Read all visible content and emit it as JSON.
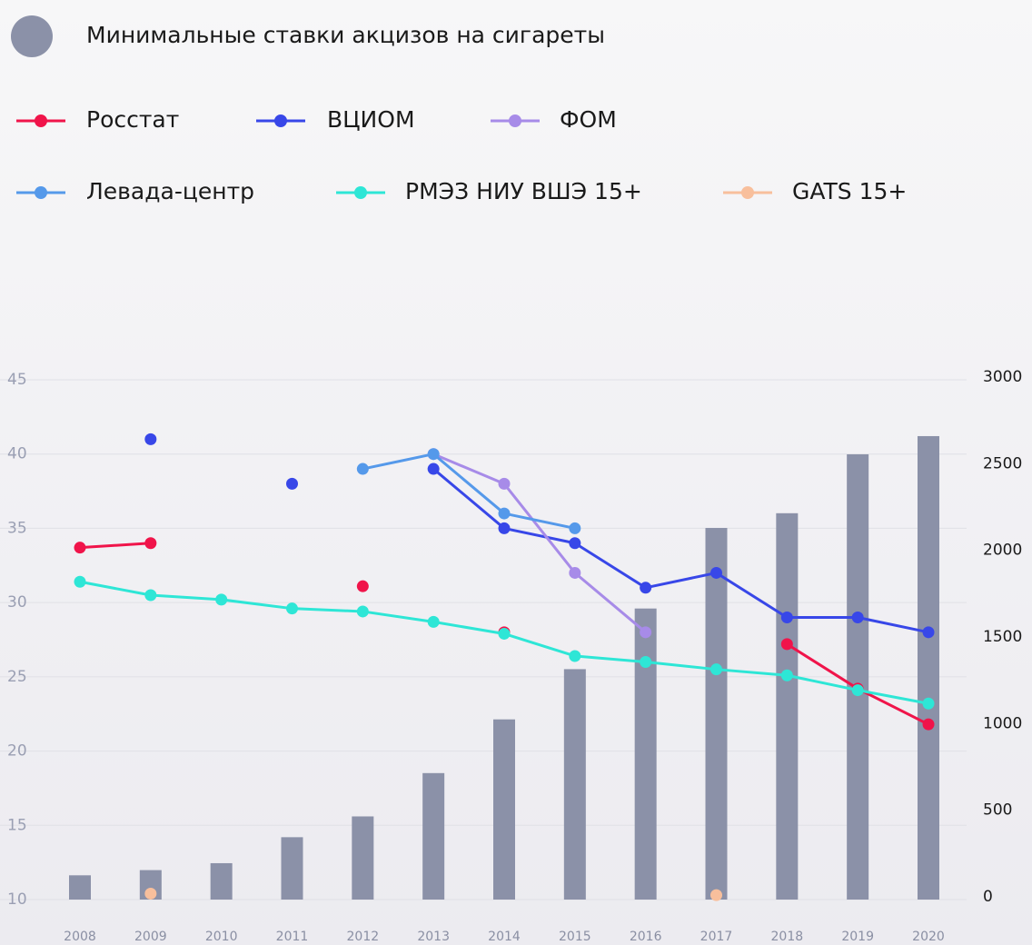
{
  "chart_data": {
    "type": "combo",
    "categories": [
      "2008",
      "2009",
      "2010",
      "2011",
      "2012",
      "2013",
      "2014",
      "2015",
      "2016",
      "2017",
      "2018",
      "2019",
      "2020"
    ],
    "ylim": [
      10,
      45
    ],
    "yticks": [
      10,
      15,
      20,
      25,
      30,
      35,
      40,
      45
    ],
    "y2lim": [
      0,
      3000
    ],
    "y2ticks": [
      0,
      500,
      1000,
      1500,
      2000,
      2500,
      3000
    ],
    "grid": true,
    "series": [
      {
        "name": "Минимальные ставки акцизов на сигареты",
        "type": "bar",
        "axis": "y2",
        "color": "#8b91a8",
        "values": [
          140,
          170,
          210,
          360,
          480,
          730,
          1040,
          1330,
          1680,
          2145,
          2230,
          2570,
          2675
        ]
      },
      {
        "name": "Росстат",
        "type": "line",
        "color": "#f0144a",
        "values": [
          33.7,
          34.0,
          null,
          null,
          31.1,
          null,
          28.0,
          null,
          null,
          null,
          27.2,
          24.2,
          21.8
        ]
      },
      {
        "name": "ВЦИОМ",
        "type": "line",
        "color": "#3847e8",
        "values": [
          null,
          41,
          null,
          38,
          null,
          39,
          35,
          34,
          31,
          32,
          29,
          29,
          28
        ]
      },
      {
        "name": "ФОМ",
        "type": "line",
        "color": "#a78be8",
        "values": [
          null,
          null,
          null,
          null,
          null,
          40,
          38,
          32,
          28,
          null,
          null,
          null,
          null
        ]
      },
      {
        "name": "Левада-центр",
        "type": "line",
        "color": "#5599ea",
        "values": [
          null,
          null,
          null,
          null,
          39,
          40,
          36,
          35,
          null,
          null,
          null,
          null,
          null
        ]
      },
      {
        "name": "РМЭЗ НИУ ВШЭ 15+",
        "type": "line",
        "color": "#2ee6d6",
        "values": [
          31.4,
          30.5,
          30.2,
          29.6,
          29.4,
          28.7,
          27.9,
          26.4,
          26.0,
          25.5,
          25.1,
          24.1,
          23.2
        ]
      },
      {
        "name": "GATS 15+",
        "type": "line",
        "color": "#f8bf9c",
        "values": [
          null,
          10.4,
          null,
          null,
          null,
          null,
          null,
          null,
          null,
          10.3,
          null,
          null,
          null
        ]
      }
    ]
  }
}
